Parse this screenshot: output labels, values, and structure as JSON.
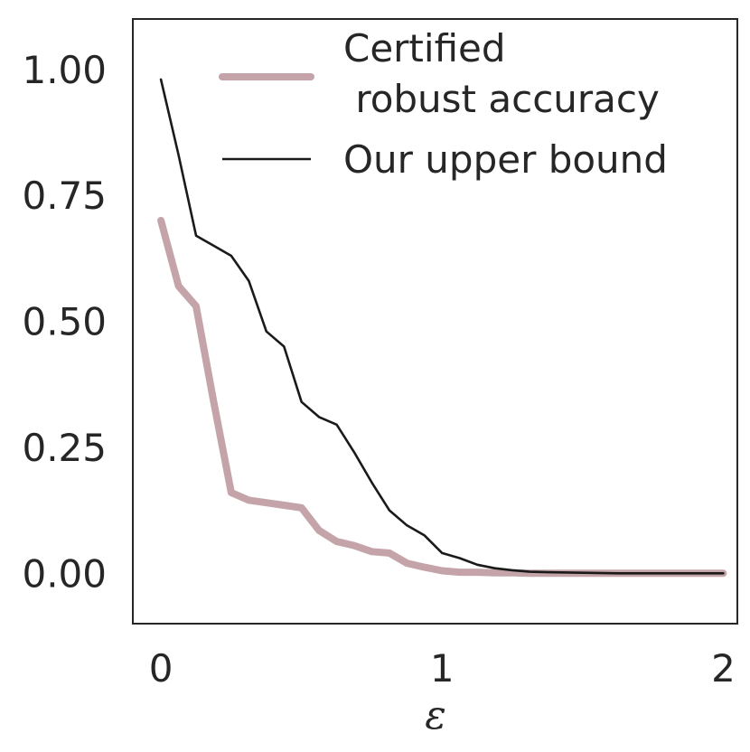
{
  "chart_data": {
    "type": "line",
    "xlabel": "ε",
    "ylabel": "",
    "xlim": [
      -0.1,
      2.05
    ],
    "ylim": [
      -0.1,
      1.1
    ],
    "xticks": [
      0,
      1,
      2
    ],
    "xtick_labels": [
      "0",
      "1",
      "2"
    ],
    "yticks": [
      0.0,
      0.25,
      0.5,
      0.75,
      1.0
    ],
    "ytick_labels": [
      "0.00",
      "0.25",
      "0.50",
      "0.75",
      "1.00"
    ],
    "grid": false,
    "legend_position": "top-right",
    "series": [
      {
        "name": "Certified\n robust accuracy",
        "color": "#c4a4a8",
        "x": [
          0.0,
          0.0625,
          0.125,
          0.1875,
          0.25,
          0.3125,
          0.375,
          0.4375,
          0.5,
          0.5625,
          0.625,
          0.6875,
          0.75,
          0.8125,
          0.875,
          0.9375,
          1.0,
          1.0625,
          1.125,
          1.1875,
          1.25,
          1.3125,
          1.375,
          1.5,
          1.625,
          1.75,
          1.875,
          2.0
        ],
        "values": [
          0.7,
          0.57,
          0.53,
          0.34,
          0.16,
          0.145,
          0.14,
          0.135,
          0.13,
          0.085,
          0.063,
          0.055,
          0.043,
          0.04,
          0.02,
          0.012,
          0.005,
          0.002,
          0.002,
          0.001,
          0.001,
          0.0,
          0.0,
          0.0,
          0.0,
          0.0,
          0.0,
          0.0
        ]
      },
      {
        "name": "Our upper bound",
        "color": "#1a1a1a",
        "x": [
          0.0,
          0.0625,
          0.125,
          0.1875,
          0.25,
          0.3125,
          0.375,
          0.4375,
          0.5,
          0.5625,
          0.625,
          0.6875,
          0.75,
          0.8125,
          0.875,
          0.9375,
          1.0,
          1.0625,
          1.125,
          1.1875,
          1.25,
          1.3125,
          1.375,
          1.5,
          1.625,
          1.75,
          1.875,
          2.0
        ],
        "values": [
          0.98,
          0.83,
          0.67,
          0.65,
          0.63,
          0.58,
          0.48,
          0.45,
          0.34,
          0.31,
          0.295,
          0.24,
          0.18,
          0.125,
          0.095,
          0.075,
          0.04,
          0.03,
          0.017,
          0.01,
          0.006,
          0.003,
          0.002,
          0.001,
          0.0,
          0.0,
          0.0,
          0.0
        ]
      }
    ]
  }
}
